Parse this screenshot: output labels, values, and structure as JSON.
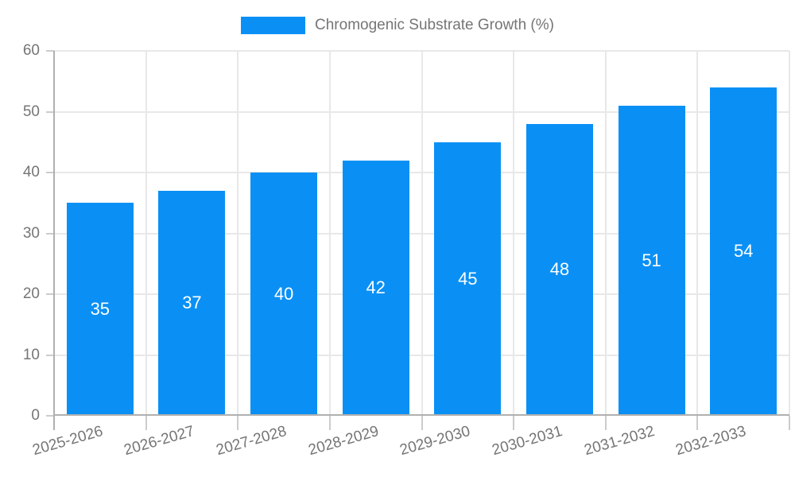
{
  "legend": {
    "label": "Chromogenic Substrate Growth (%)"
  },
  "chart_data": {
    "type": "bar",
    "title": "",
    "categories": [
      "2025-2026",
      "2026-2027",
      "2027-2028",
      "2028-2029",
      "2029-2030",
      "2030-2031",
      "2031-2032",
      "2032-2033"
    ],
    "values": [
      35,
      37,
      40,
      42,
      45,
      48,
      51,
      54
    ],
    "bar_labels": [
      "35",
      "37",
      "40",
      "42",
      "45",
      "48",
      "51",
      "54"
    ],
    "series": [
      {
        "name": "Chromogenic Substrate Growth (%)",
        "values": [
          35,
          37,
          40,
          42,
          45,
          48,
          51,
          54
        ]
      }
    ],
    "xlabel": "",
    "ylabel": "",
    "ylim": [
      0,
      60
    ],
    "yticks": [
      0,
      10,
      20,
      30,
      40,
      50,
      60
    ],
    "grid": true,
    "legend_position": "top-center",
    "x_label_rotation_deg": -16,
    "colors": {
      "bar": "#0A90F5",
      "bar_label": "#ffffff",
      "axis_text": "#757575",
      "grid_line": "#e8e8e8",
      "axis_line": "#b0b0b0",
      "tick_mark": "#cccccc"
    }
  }
}
